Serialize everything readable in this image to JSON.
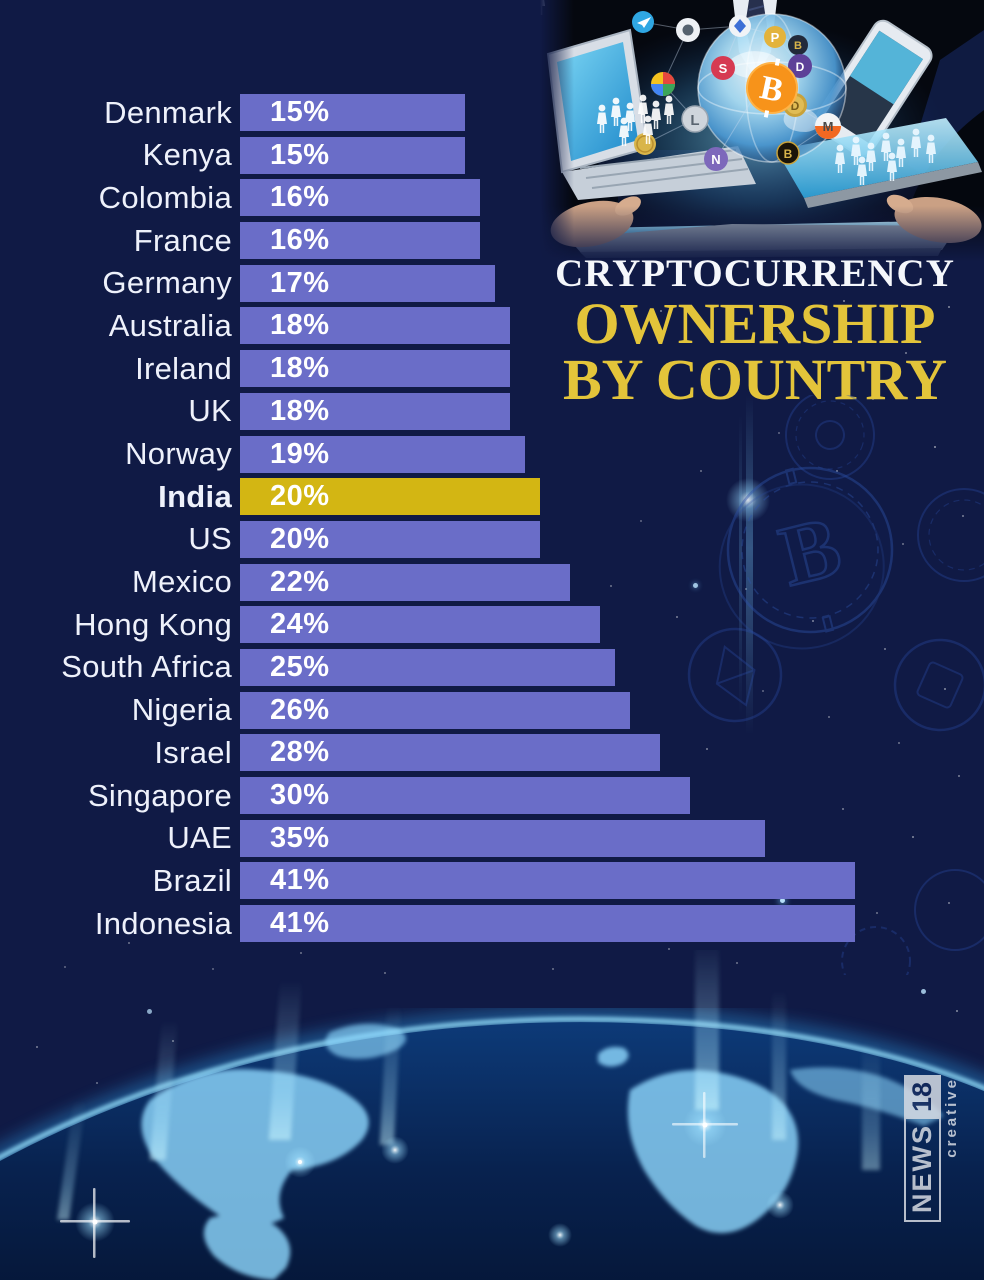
{
  "title": {
    "line1": "CRYPTOCURRENCY",
    "line2": "OWNERSHIP",
    "line3": "BY COUNTRY"
  },
  "chart_data": {
    "type": "bar",
    "orientation": "horizontal",
    "title": "Cryptocurrency Ownership by Country",
    "categories": [
      "Denmark",
      "Kenya",
      "Colombia",
      "France",
      "Germany",
      "Australia",
      "Ireland",
      "UK",
      "Norway",
      "India",
      "US",
      "Mexico",
      "Hong Kong",
      "South Africa",
      "Nigeria",
      "Israel",
      "Singapore",
      "UAE",
      "Brazil",
      "Indonesia"
    ],
    "values": [
      15,
      15,
      16,
      16,
      17,
      18,
      18,
      18,
      19,
      20,
      20,
      22,
      24,
      25,
      26,
      28,
      30,
      35,
      41,
      41
    ],
    "value_suffix": "%",
    "highlight_category": "India",
    "bar_color": "#6a6dc8",
    "highlight_color": "#d3b613",
    "label_color": "#eef1fb",
    "value_color": "#ffffff",
    "xlim": [
      0,
      45
    ],
    "grid": false,
    "legend": false
  },
  "branding": {
    "network": "NEWS",
    "channel_number": "18",
    "division": "creative"
  },
  "colors": {
    "background": "#101a45",
    "title_white": "#f5f7fb",
    "title_gold": "#e3c43a"
  }
}
